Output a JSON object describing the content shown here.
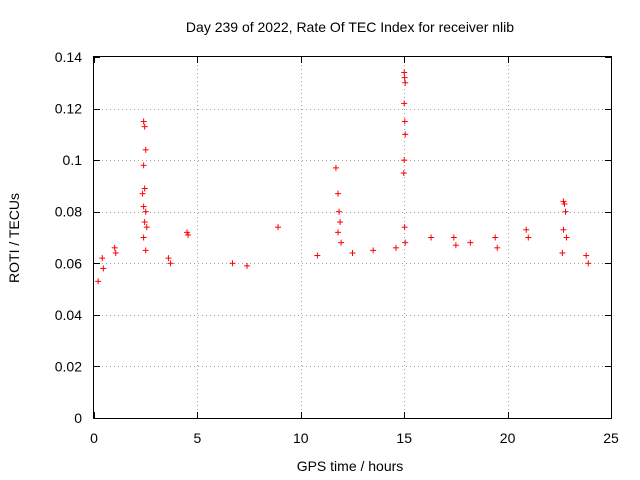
{
  "chart_data": {
    "type": "scatter",
    "title": "Day 239 of 2022, Rate Of TEC Index for receiver nlib",
    "xlabel": "GPS time / hours",
    "ylabel": "ROTI / TECUs",
    "xlim": [
      0,
      25
    ],
    "ylim": [
      0,
      0.14
    ],
    "xticks": [
      0,
      5,
      10,
      15,
      20,
      25
    ],
    "xtick_labels": [
      "0",
      "5",
      "10",
      "15",
      "20",
      "25"
    ],
    "yticks": [
      0,
      0.02,
      0.04,
      0.06,
      0.08,
      0.1,
      0.12,
      0.14
    ],
    "ytick_labels": [
      "0",
      "0.02",
      "0.04",
      "0.06",
      "0.08",
      "0.1",
      "0.12",
      "0.14"
    ],
    "grid": true,
    "marker": "+",
    "color": "#ff0000",
    "series": [
      {
        "x": [
          2.4,
          2.45,
          2.5,
          2.4,
          2.45,
          2.35,
          2.4,
          2.5,
          2.45,
          2.55,
          2.4,
          2.5,
          15.0,
          15.02,
          15.05,
          15.0,
          15.03,
          15.05,
          15.0,
          14.98,
          15.02,
          15.05,
          11.7,
          11.8,
          11.85,
          11.9,
          11.8,
          11.95,
          22.7,
          22.75,
          22.8,
          22.7,
          22.85,
          22.65,
          8.9,
          4.5,
          4.55,
          20.9,
          21.0,
          16.3,
          17.4,
          17.5,
          19.4,
          19.5,
          13.5,
          3.6,
          3.7,
          0.4,
          0.45,
          1.0,
          1.05,
          0.2,
          6.7,
          7.4,
          10.8,
          12.5,
          14.6,
          23.8,
          23.9,
          18.2
        ],
        "y": [
          0.115,
          0.113,
          0.104,
          0.098,
          0.089,
          0.087,
          0.082,
          0.08,
          0.076,
          0.074,
          0.07,
          0.065,
          0.134,
          0.132,
          0.13,
          0.122,
          0.115,
          0.11,
          0.1,
          0.095,
          0.074,
          0.068,
          0.097,
          0.087,
          0.08,
          0.076,
          0.072,
          0.068,
          0.084,
          0.083,
          0.08,
          0.073,
          0.07,
          0.064,
          0.074,
          0.072,
          0.071,
          0.073,
          0.07,
          0.07,
          0.07,
          0.067,
          0.07,
          0.066,
          0.065,
          0.062,
          0.06,
          0.062,
          0.058,
          0.066,
          0.064,
          0.053,
          0.06,
          0.059,
          0.063,
          0.064,
          0.066,
          0.063,
          0.06,
          0.068
        ]
      }
    ]
  }
}
